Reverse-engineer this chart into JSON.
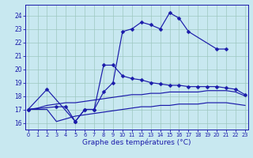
{
  "xlabel": "Graphe des températures (°C)",
  "background_color": "#c8e8f0",
  "grid_color": "#9dc8c0",
  "line_color": "#1a1aaa",
  "series_top": {
    "x": [
      0,
      2,
      5,
      6,
      7,
      8,
      9,
      10,
      11,
      12,
      13,
      14,
      15,
      16,
      17,
      20,
      21
    ],
    "y": [
      17.0,
      18.5,
      16.1,
      17.0,
      17.0,
      18.3,
      19.0,
      22.8,
      23.0,
      23.5,
      23.3,
      23.0,
      24.2,
      23.8,
      22.8,
      21.5,
      21.5
    ]
  },
  "series_mid_high": {
    "x": [
      0,
      3,
      4,
      5,
      6,
      7,
      8,
      9,
      10,
      11,
      12,
      13,
      14,
      15,
      16,
      17,
      18,
      19,
      20,
      21,
      22,
      23
    ],
    "y": [
      17.0,
      17.2,
      17.2,
      16.1,
      17.0,
      17.0,
      20.3,
      20.3,
      19.5,
      19.3,
      19.2,
      19.0,
      18.9,
      18.8,
      18.8,
      18.7,
      18.7,
      18.7,
      18.7,
      18.6,
      18.5,
      18.1
    ]
  },
  "series_mid_low": {
    "x": [
      0,
      1,
      2,
      3,
      4,
      5,
      6,
      7,
      8,
      9,
      10,
      11,
      12,
      13,
      14,
      15,
      16,
      17,
      18,
      19,
      20,
      21,
      22,
      23
    ],
    "y": [
      17.0,
      17.1,
      17.3,
      17.4,
      17.5,
      17.5,
      17.6,
      17.7,
      17.8,
      17.9,
      18.0,
      18.1,
      18.1,
      18.2,
      18.2,
      18.3,
      18.3,
      18.3,
      18.3,
      18.4,
      18.4,
      18.4,
      18.3,
      18.0
    ]
  },
  "series_bot": {
    "x": [
      0,
      1,
      2,
      3,
      4,
      5,
      6,
      7,
      8,
      9,
      10,
      11,
      12,
      13,
      14,
      15,
      16,
      17,
      18,
      19,
      20,
      21,
      22,
      23
    ],
    "y": [
      17.0,
      17.0,
      17.0,
      16.1,
      16.3,
      16.5,
      16.6,
      16.7,
      16.8,
      16.9,
      17.0,
      17.1,
      17.2,
      17.2,
      17.3,
      17.3,
      17.4,
      17.4,
      17.4,
      17.5,
      17.5,
      17.5,
      17.4,
      17.3
    ]
  },
  "ylim": [
    15.5,
    24.8
  ],
  "yticks": [
    16,
    17,
    18,
    19,
    20,
    21,
    22,
    23,
    24
  ],
  "xlim": [
    -0.3,
    23.3
  ],
  "xticks": [
    0,
    1,
    2,
    3,
    4,
    5,
    6,
    7,
    8,
    9,
    10,
    11,
    12,
    13,
    14,
    15,
    16,
    17,
    18,
    19,
    20,
    21,
    22,
    23
  ]
}
